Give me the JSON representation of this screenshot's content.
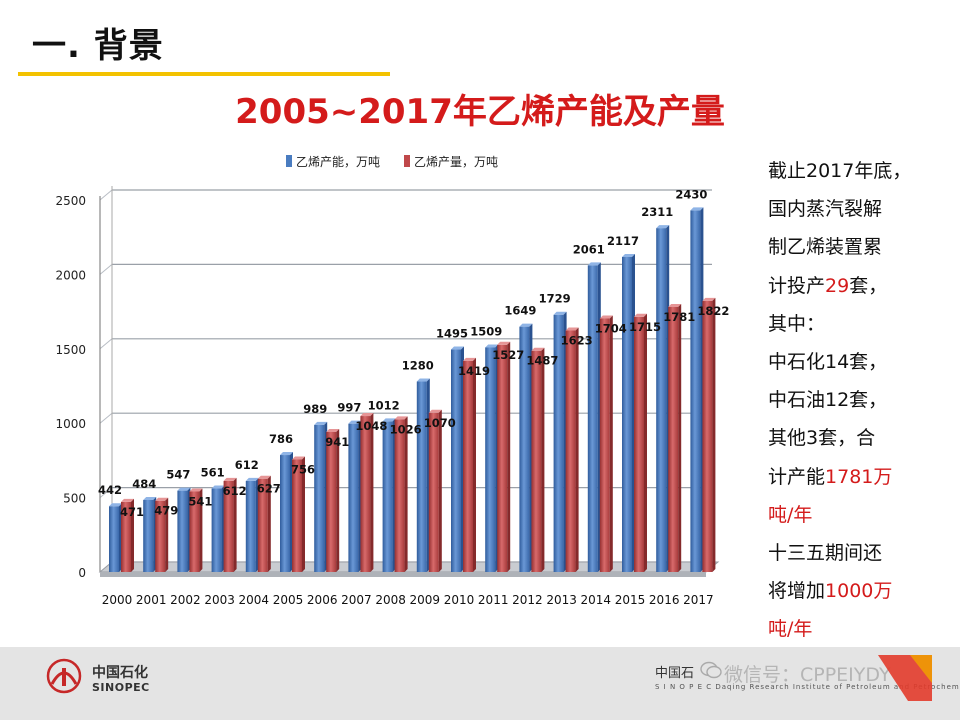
{
  "header": {
    "section_title": "一. 背景",
    "chart_title": "2005~2017年乙烯产能及产量"
  },
  "chart_data": {
    "type": "bar",
    "title": "2005~2017年乙烯产能及产量",
    "categories": [
      "2000",
      "2001",
      "2002",
      "2003",
      "2004",
      "2005",
      "2006",
      "2007",
      "2008",
      "2009",
      "2010",
      "2011",
      "2012",
      "2013",
      "2014",
      "2015",
      "2016",
      "2017"
    ],
    "series": [
      {
        "name": "乙烯产能，万吨",
        "color": "#4a7cc0",
        "values": [
          442,
          484,
          547,
          561,
          612,
          786,
          989,
          997,
          1012,
          1280,
          1495,
          1509,
          1649,
          1729,
          2061,
          2117,
          2311,
          2430
        ]
      },
      {
        "name": "乙烯产量，万吨",
        "color": "#c0484a",
        "values": [
          471,
          479,
          541,
          612,
          627,
          756,
          941,
          1048,
          1026,
          1070,
          1419,
          1527,
          1487,
          1623,
          1704,
          1715,
          1781,
          1822
        ]
      }
    ],
    "ylim": [
      0,
      2500
    ],
    "yticks": [
      0,
      500,
      1000,
      1500,
      2000,
      2500
    ],
    "xlabel": "",
    "ylabel": "",
    "legend_position": "top",
    "grid": true,
    "style": "3d"
  },
  "side_note": {
    "lines": [
      [
        {
          "text": "截止2017年底，",
          "highlight": false
        }
      ],
      [
        {
          "text": "国内蒸汽裂解",
          "highlight": false
        }
      ],
      [
        {
          "text": "制乙烯装置累",
          "highlight": false
        }
      ],
      [
        {
          "text": "计投产",
          "highlight": false
        },
        {
          "text": "29",
          "highlight": true
        },
        {
          "text": "套，",
          "highlight": false
        }
      ],
      [
        {
          "text": "其中：",
          "highlight": false
        }
      ],
      [
        {
          "text": "中石化14套，",
          "highlight": false
        }
      ],
      [
        {
          "text": "中石油12套，",
          "highlight": false
        }
      ],
      [
        {
          "text": "其他3套，合",
          "highlight": false
        }
      ],
      [
        {
          "text": "计产能",
          "highlight": false
        },
        {
          "text": "1781万",
          "highlight": true
        }
      ],
      [
        {
          "text": "吨/年",
          "highlight": true
        }
      ],
      [
        {
          "text": "十三五期间还",
          "highlight": false
        }
      ],
      [
        {
          "text": "将增加",
          "highlight": false
        },
        {
          "text": "1000万",
          "highlight": true
        }
      ],
      [
        {
          "text": "吨/年",
          "highlight": true
        }
      ]
    ],
    "highlight_color": "#d41b1b"
  },
  "footer": {
    "brand_cn": "中国石化",
    "brand_en": "SINOPEC",
    "institute_cn": "中国石",
    "institute_en": "S I N O P E C  Daqing Research Institute of Petroleum and Petrochemicals",
    "watermark": "微信号：CPPEIYDY"
  },
  "colors": {
    "accent": "#f3c200",
    "title_red": "#d41b1b",
    "bar_blue": "#4a7cc0",
    "bar_red": "#c0484a"
  }
}
